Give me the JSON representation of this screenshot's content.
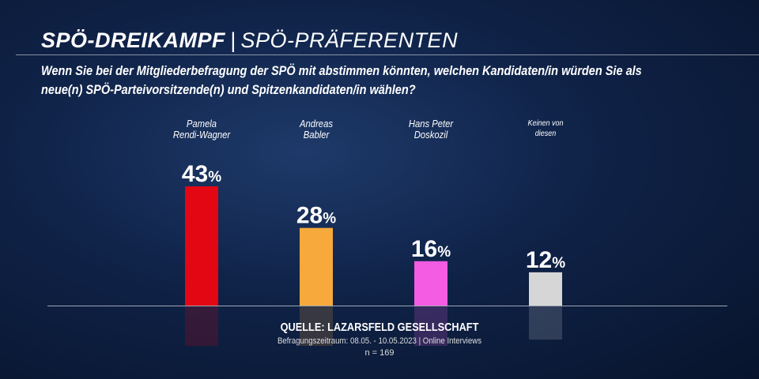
{
  "header": {
    "title": "SPÖ-DREIKAMPF",
    "separator": "|",
    "subtitle": "SPÖ-PRÄFERENTEN"
  },
  "question": "Wenn Sie bei der Mitgliederbefragung der SPÖ mit abstimmen könnten, welchen Kandidaten/in würden Sie als neue(n) SPÖ-Parteivorsitzende(n) und Spitzenkandidaten/in wählen?",
  "chart_data": {
    "type": "bar",
    "categories": [
      "Pamela Rendi-Wagner",
      "Andreas Babler",
      "Hans Peter Doskozil",
      "Keinen von diesen"
    ],
    "category_lines": [
      [
        "Pamela",
        "Rendi-Wagner"
      ],
      [
        "Andreas",
        "Babler"
      ],
      [
        "Hans Peter",
        "Doskozil"
      ],
      [
        "Keinen von",
        "diesen"
      ]
    ],
    "values": [
      43,
      28,
      16,
      12
    ],
    "labels": [
      "43",
      "28",
      "16",
      "12"
    ],
    "unit": "%",
    "colors": [
      "#e30613",
      "#f7a93b",
      "#f35ce3",
      "#d6d6d6"
    ],
    "ylim": [
      0,
      50
    ],
    "grid": false
  },
  "source": {
    "line1": "QUELLE:  LAZARSFELD GESELLSCHAFT",
    "line2": "Befragungszeitraum: 08.05. - 10.05.2023 | Online Interviews",
    "line3": "n = 169"
  }
}
